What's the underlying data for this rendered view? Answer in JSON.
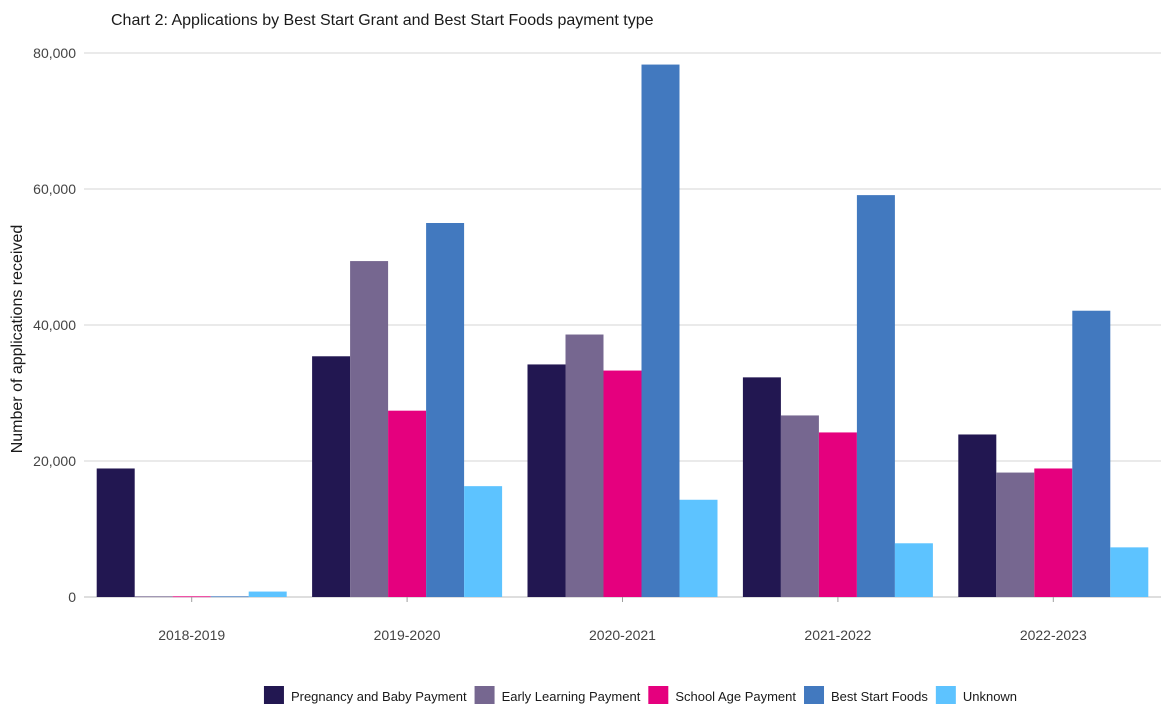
{
  "chart_data": {
    "type": "bar",
    "title": "Chart 2: Applications by Best Start Grant and Best Start Foods payment type",
    "xlabel": "",
    "ylabel": "Number of applications received",
    "categories": [
      "2018-2019",
      "2019-2020",
      "2020-2021",
      "2021-2022",
      "2022-2023"
    ],
    "ylim": [
      0,
      80000
    ],
    "yticks": [
      0,
      20000,
      40000,
      60000,
      80000
    ],
    "ytick_labels": [
      "0",
      "20,000",
      "40,000",
      "60,000",
      "80,000"
    ],
    "grid": true,
    "legend_position": "bottom",
    "series": [
      {
        "name": "Pregnancy and Baby Payment",
        "color": "#221751",
        "values": [
          18900,
          35400,
          34200,
          32300,
          23900
        ]
      },
      {
        "name": "Early Learning Payment",
        "color": "#766790",
        "values": [
          100,
          49400,
          38600,
          26700,
          18300
        ]
      },
      {
        "name": "School Age Payment",
        "color": "#e5007e",
        "values": [
          100,
          27400,
          33300,
          24200,
          18900
        ]
      },
      {
        "name": "Best Start Foods",
        "color": "#4279bf",
        "values": [
          100,
          55000,
          78300,
          59100,
          42100
        ]
      },
      {
        "name": "Unknown",
        "color": "#5dc3ff",
        "values": [
          800,
          16300,
          14300,
          7900,
          7300
        ]
      }
    ]
  }
}
